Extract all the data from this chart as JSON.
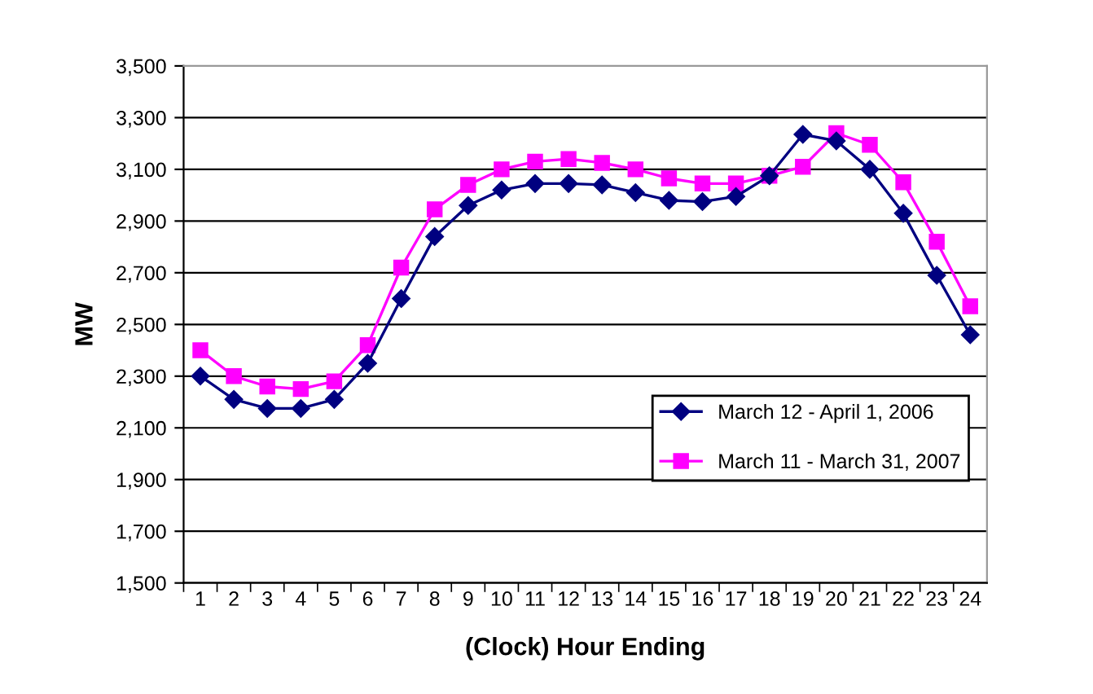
{
  "chart_data": {
    "type": "line",
    "xlabel": "(Clock) Hour Ending",
    "ylabel": "MW",
    "categories": [
      "1",
      "2",
      "3",
      "4",
      "5",
      "6",
      "7",
      "8",
      "9",
      "10",
      "11",
      "12",
      "13",
      "14",
      "15",
      "16",
      "17",
      "18",
      "19",
      "20",
      "21",
      "22",
      "23",
      "24"
    ],
    "series": [
      {
        "name": "March 12 - April 1, 2006",
        "color": "#000080",
        "marker": "diamond",
        "values": [
          2300,
          2210,
          2175,
          2175,
          2210,
          2350,
          2600,
          2840,
          2960,
          3020,
          3045,
          3045,
          3040,
          3010,
          2980,
          2975,
          2995,
          3075,
          3235,
          3210,
          3100,
          2930,
          2690,
          2460
        ]
      },
      {
        "name": "March 11 - March 31, 2007",
        "color": "#ff00ff",
        "marker": "square",
        "values": [
          2400,
          2300,
          2260,
          2250,
          2280,
          2420,
          2720,
          2945,
          3040,
          3100,
          3130,
          3140,
          3125,
          3100,
          3065,
          3045,
          3045,
          3075,
          3110,
          3240,
          3195,
          3050,
          2820,
          2570
        ]
      }
    ],
    "ylim": [
      1500,
      3500
    ],
    "yticks": [
      {
        "value": 1500,
        "label": "1,500"
      },
      {
        "value": 1700,
        "label": "1,700"
      },
      {
        "value": 1900,
        "label": "1,900"
      },
      {
        "value": 2100,
        "label": "2,100"
      },
      {
        "value": 2300,
        "label": "2,300"
      },
      {
        "value": 2500,
        "label": "2,500"
      },
      {
        "value": 2700,
        "label": "2,700"
      },
      {
        "value": 2900,
        "label": "2,900"
      },
      {
        "value": 3100,
        "label": "3,100"
      },
      {
        "value": 3300,
        "label": "3,300"
      },
      {
        "value": 3500,
        "label": "3,500"
      }
    ],
    "grid": "y",
    "legend": "right",
    "line_style": "solid"
  }
}
